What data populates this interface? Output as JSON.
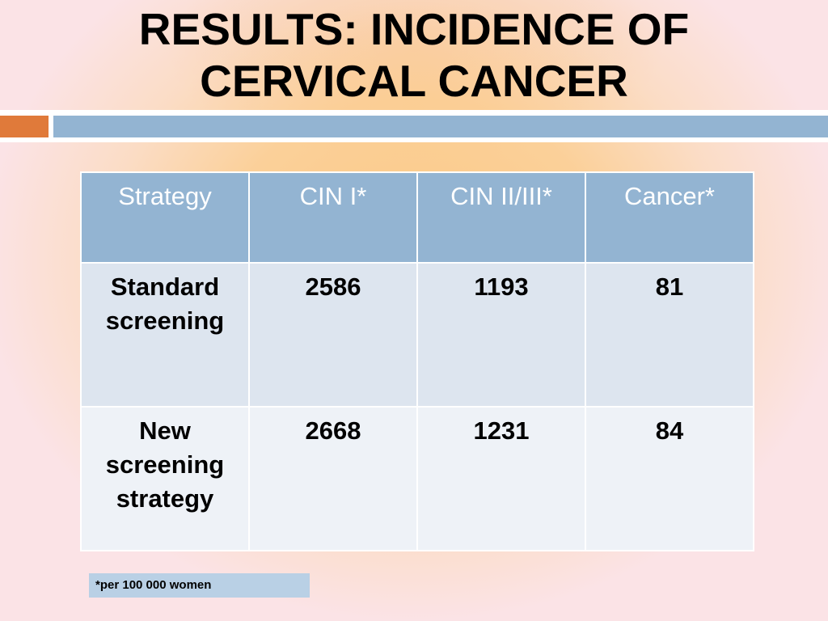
{
  "slide": {
    "title_line1": "RESULTS: INCIDENCE OF",
    "title_line2": "CERVICAL CANCER",
    "colors": {
      "accent_orange": "#e07a3a",
      "accent_blue": "#93b4d2",
      "background_pink": "#fbe3e6",
      "glow_orange": "#fbc780"
    }
  },
  "table": {
    "headers": [
      "Strategy",
      "CIN I*",
      "CIN II/III*",
      "Cancer*"
    ],
    "rows": [
      {
        "strategy_lines": [
          "Standard",
          "screening"
        ],
        "cin1": "2586",
        "cin23": "1193",
        "cancer": "81"
      },
      {
        "strategy_lines": [
          "New",
          "screening",
          "strategy"
        ],
        "cin1": "2668",
        "cin23": "1231",
        "cancer": "84"
      }
    ]
  },
  "footnote": "*per 100 000 women"
}
